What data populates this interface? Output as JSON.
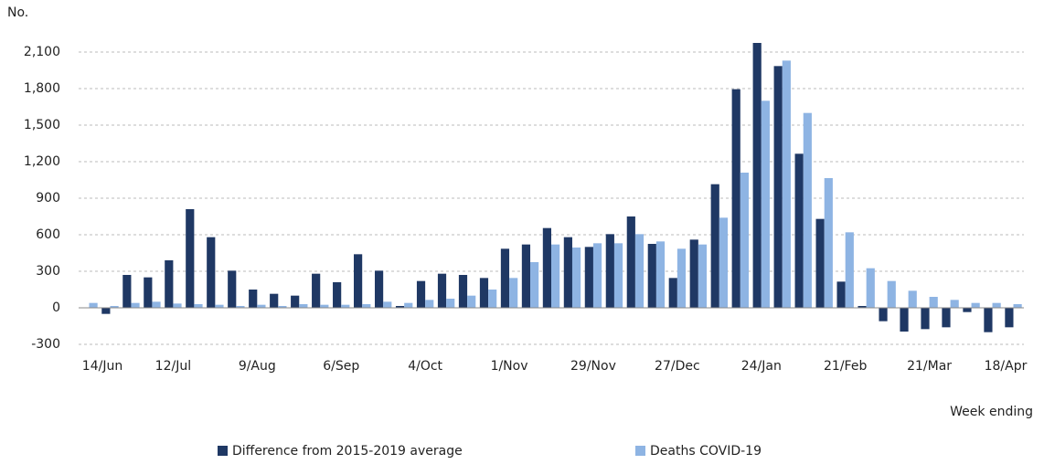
{
  "chart_data": {
    "type": "bar",
    "y_label": "No.",
    "x_label": "Week ending",
    "categories": [
      "14/Jun",
      null,
      null,
      null,
      "12/Jul",
      null,
      null,
      null,
      "9/Aug",
      null,
      null,
      null,
      "6/Sep",
      null,
      null,
      null,
      "4/Oct",
      null,
      null,
      null,
      "1/Nov",
      null,
      null,
      null,
      "29/Nov",
      null,
      null,
      null,
      "27/Dec",
      null,
      null,
      null,
      "24/Jan",
      null,
      null,
      null,
      "21/Feb",
      null,
      null,
      null,
      "21/Mar",
      null,
      null,
      null,
      "18/Apr"
    ],
    "series": [
      {
        "name": "Difference from 2015-2019 average",
        "color": "#1f3864",
        "values": [
          0,
          -50,
          270,
          250,
          390,
          810,
          580,
          305,
          150,
          115,
          100,
          280,
          210,
          440,
          305,
          15,
          220,
          280,
          270,
          245,
          485,
          520,
          655,
          580,
          500,
          605,
          750,
          525,
          245,
          560,
          1015,
          1795,
          2175,
          1985,
          1265,
          730,
          215,
          15,
          -110,
          -195,
          -175,
          -160,
          -35,
          -200,
          -160
        ]
      },
      {
        "name": "Deaths COVID-19",
        "color": "#8eb4e3",
        "values": [
          40,
          15,
          40,
          50,
          35,
          30,
          25,
          15,
          25,
          15,
          30,
          25,
          25,
          30,
          50,
          40,
          65,
          75,
          100,
          150,
          245,
          375,
          520,
          495,
          530,
          530,
          605,
          545,
          485,
          520,
          740,
          1110,
          1700,
          2030,
          1600,
          1065,
          620,
          325,
          220,
          140,
          90,
          65,
          40,
          40,
          30
        ]
      }
    ],
    "ylim": [
      -300,
      2250
    ],
    "yticks": [
      {
        "value": -300,
        "label": "-300"
      },
      0,
      300,
      600,
      900,
      {
        "value": 1200,
        "label": "1,200"
      },
      {
        "value": 1500,
        "label": "1,500"
      },
      {
        "value": 1800,
        "label": "1,800"
      },
      {
        "value": 2100,
        "label": "2,100"
      }
    ],
    "grid": true,
    "legend": "bottom"
  }
}
